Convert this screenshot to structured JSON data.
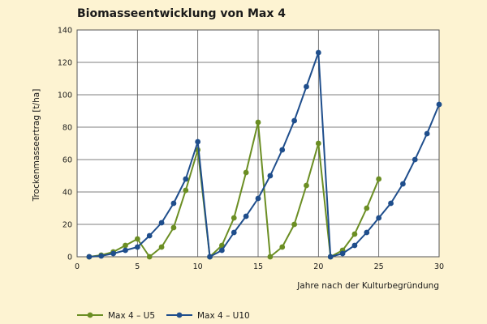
{
  "chart_data": {
    "type": "line",
    "title": "Biomasseentwicklung von Max 4",
    "xlabel": "Jahre nach der Kulturbegründung",
    "ylabel": "Trockenmasseertrag [t/ha]",
    "xlim": [
      0,
      30
    ],
    "ylim": [
      0,
      140
    ],
    "xticks": [
      0,
      5,
      10,
      15,
      20,
      25,
      30
    ],
    "yticks": [
      0,
      20,
      40,
      60,
      80,
      100,
      120,
      140
    ],
    "grid": true,
    "legend_position": "bottom-left",
    "series": [
      {
        "name": "Max 4 – U5",
        "color": "#6b8e23",
        "x": [
          1,
          2,
          3,
          4,
          5,
          6,
          7,
          8,
          9,
          10,
          11,
          12,
          13,
          14,
          15,
          16,
          17,
          18,
          19,
          20,
          21,
          22,
          23,
          24,
          25
        ],
        "y": [
          0,
          1,
          3,
          7,
          11,
          0,
          6,
          18,
          41,
          66,
          0,
          7,
          24,
          52,
          83,
          0,
          6,
          20,
          44,
          70,
          0,
          4,
          14,
          30,
          48
        ]
      },
      {
        "name": "Max 4 – U10",
        "color": "#1f4e8c",
        "x": [
          1,
          2,
          3,
          4,
          5,
          6,
          7,
          8,
          9,
          10,
          11,
          12,
          13,
          14,
          15,
          16,
          17,
          18,
          19,
          20,
          21,
          22,
          23,
          24,
          25,
          26,
          27,
          28,
          29,
          30
        ],
        "y": [
          0,
          0.5,
          2,
          4,
          6,
          13,
          21,
          33,
          48,
          71,
          0,
          4,
          15,
          25,
          36,
          50,
          66,
          84,
          105,
          126,
          0,
          2,
          7,
          15,
          24,
          33,
          45,
          60,
          76,
          94
        ]
      }
    ]
  }
}
